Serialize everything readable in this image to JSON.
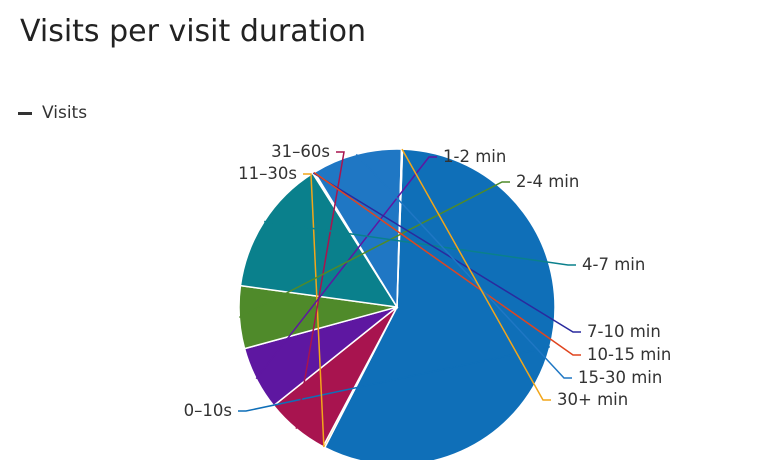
{
  "chart_data": {
    "type": "pie",
    "title": "Visits per visit duration",
    "legend": {
      "label": "Visits",
      "placement": "top-left"
    },
    "series": [
      {
        "name": "Visits",
        "slices": [
          {
            "label": "0–10s",
            "value": 57.0,
            "color": "#0f6fb8"
          },
          {
            "label": "11–30s",
            "value": 0.2,
            "color": "#f2a61a"
          },
          {
            "label": "31–60s",
            "value": 6.5,
            "color": "#a8144f"
          },
          {
            "label": "1-2 min",
            "value": 6.5,
            "color": "#5e17a1"
          },
          {
            "label": "2-4 min",
            "value": 6.4,
            "color": "#4f8a2a"
          },
          {
            "label": "4-7 min",
            "value": 13.9,
            "color": "#0a808c"
          },
          {
            "label": "7-10 min",
            "value": 0.1,
            "color": "#2a2a9e"
          },
          {
            "label": "10-15 min",
            "value": 0.1,
            "color": "#e0451f"
          },
          {
            "label": "15-30 min",
            "value": 9.2,
            "color": "#1f77c4"
          },
          {
            "label": "30+ min",
            "value": 0.1,
            "color": "#f2a61a"
          }
        ]
      }
    ]
  }
}
